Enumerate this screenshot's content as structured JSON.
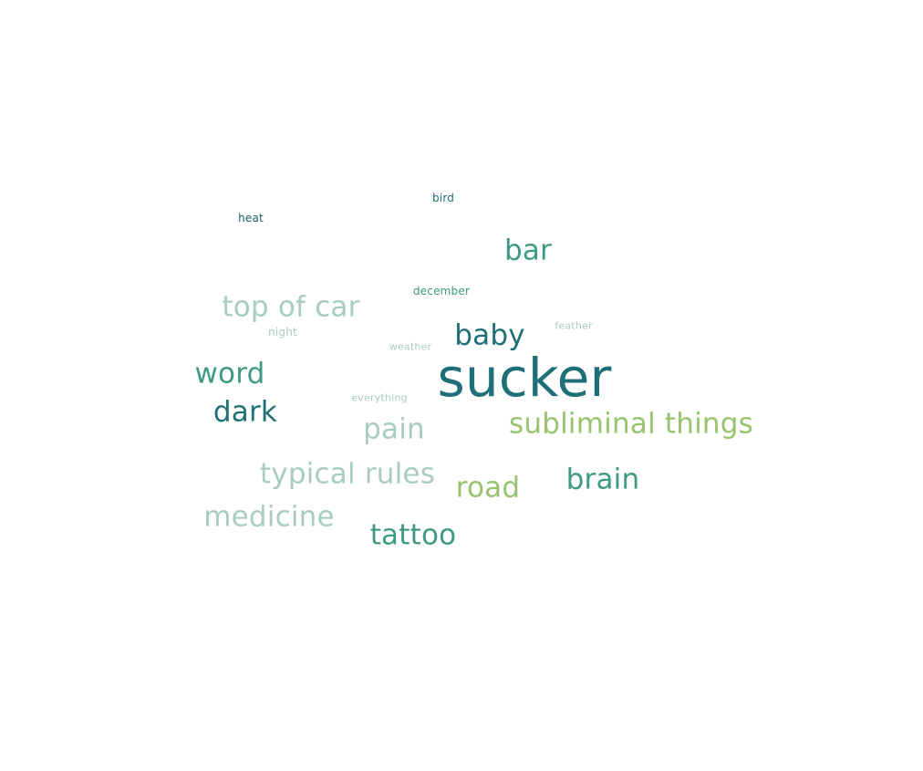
{
  "word_cloud": {
    "words": [
      {
        "id": "bird",
        "text": "bird",
        "color": "#1f6f78"
      },
      {
        "id": "heat",
        "text": "heat",
        "color": "#1a5b63"
      },
      {
        "id": "bar",
        "text": "bar",
        "color": "#3e9a82"
      },
      {
        "id": "december",
        "text": "december",
        "color": "#3e9a82"
      },
      {
        "id": "topofcar",
        "text": "top of car",
        "color": "#a9cdbd"
      },
      {
        "id": "feather",
        "text": "feather",
        "color": "#a9cdbd"
      },
      {
        "id": "night",
        "text": "night",
        "color": "#a9cdbd"
      },
      {
        "id": "baby",
        "text": "baby",
        "color": "#1f6f78"
      },
      {
        "id": "weather",
        "text": "weather",
        "color": "#a9cdbd"
      },
      {
        "id": "sucker",
        "text": "sucker",
        "color": "#1f6f78"
      },
      {
        "id": "word",
        "text": "word",
        "color": "#3e9a82"
      },
      {
        "id": "everything",
        "text": "everything",
        "color": "#a9cdbd"
      },
      {
        "id": "dark",
        "text": "dark",
        "color": "#1f6f78"
      },
      {
        "id": "subliminal",
        "text": "subliminal things",
        "color": "#98c46f"
      },
      {
        "id": "pain",
        "text": "pain",
        "color": "#a9cdbd"
      },
      {
        "id": "typical",
        "text": "typical rules",
        "color": "#a9cdbd"
      },
      {
        "id": "brain",
        "text": "brain",
        "color": "#3e9a82"
      },
      {
        "id": "road",
        "text": "road",
        "color": "#98c46f"
      },
      {
        "id": "medicine",
        "text": "medicine",
        "color": "#a9cdbd"
      },
      {
        "id": "tattoo",
        "text": "tattoo",
        "color": "#3e9a82"
      }
    ]
  }
}
